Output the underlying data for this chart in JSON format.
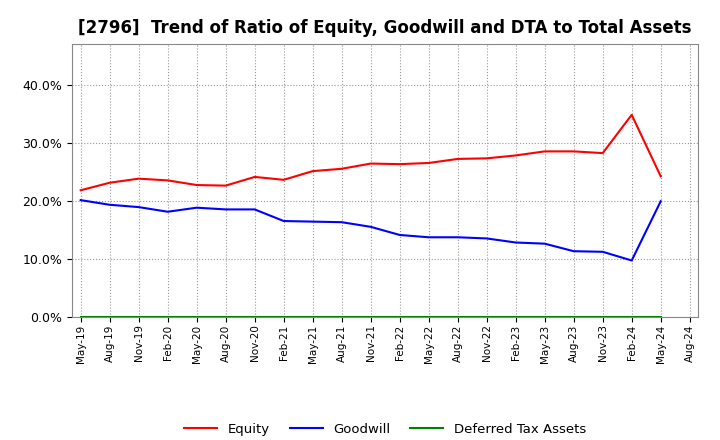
{
  "title": "[2796]  Trend of Ratio of Equity, Goodwill and DTA to Total Assets",
  "x_labels": [
    "May-19",
    "Aug-19",
    "Nov-19",
    "Feb-20",
    "May-20",
    "Aug-20",
    "Nov-20",
    "Feb-21",
    "May-21",
    "Aug-21",
    "Nov-21",
    "Feb-22",
    "May-22",
    "Aug-22",
    "Nov-22",
    "Feb-23",
    "May-23",
    "Aug-23",
    "Nov-23",
    "Feb-24",
    "May-24",
    "Aug-24"
  ],
  "equity": [
    21.8,
    23.1,
    23.8,
    23.5,
    22.7,
    22.6,
    24.1,
    23.6,
    25.1,
    25.5,
    26.4,
    26.3,
    26.5,
    27.2,
    27.3,
    27.8,
    28.5,
    28.5,
    28.2,
    34.8,
    24.2,
    null
  ],
  "goodwill": [
    20.1,
    19.3,
    18.9,
    18.1,
    18.8,
    18.5,
    18.5,
    16.5,
    16.4,
    16.3,
    15.5,
    14.1,
    13.7,
    13.7,
    13.5,
    12.8,
    12.6,
    11.3,
    11.2,
    9.7,
    19.9,
    null
  ],
  "dta": [
    0.0,
    0.0,
    0.0,
    0.0,
    0.0,
    0.0,
    0.0,
    0.0,
    0.0,
    0.0,
    0.0,
    0.0,
    0.0,
    0.0,
    0.0,
    0.0,
    0.0,
    0.0,
    0.0,
    0.0,
    0.0,
    null
  ],
  "equity_color": "#FF0000",
  "goodwill_color": "#0000FF",
  "dta_color": "#008000",
  "ylim": [
    0,
    47
  ],
  "yticks": [
    0,
    10,
    20,
    30,
    40
  ],
  "background_color": "#FFFFFF",
  "plot_bg_color": "#FFFFFF",
  "grid_color": "#999999",
  "title_fontsize": 12,
  "legend_labels": [
    "Equity",
    "Goodwill",
    "Deferred Tax Assets"
  ]
}
